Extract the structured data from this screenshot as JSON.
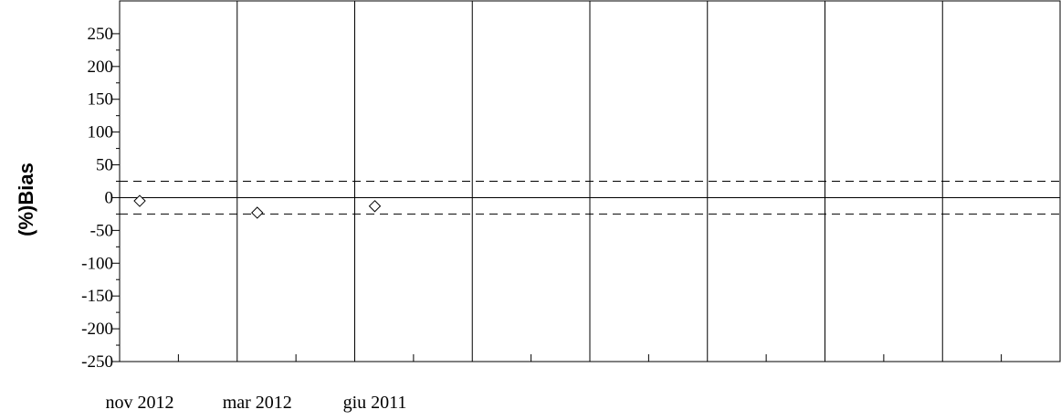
{
  "chart_data": {
    "type": "scatter",
    "ylabel": "(%)Bias",
    "ylim": [
      -250,
      300
    ],
    "yticks": [
      250,
      200,
      150,
      100,
      50,
      0,
      -50,
      -100,
      -150,
      -200,
      -250
    ],
    "categories": [
      "nov 2012",
      "mar 2012",
      "giu 2011",
      "",
      "",
      "",
      "",
      ""
    ],
    "series": [
      {
        "values": [
          -5,
          -23,
          -13
        ],
        "marker": "diamond-open"
      }
    ],
    "reference_lines": [
      {
        "y": 25,
        "style": "dashed"
      },
      {
        "y": 0,
        "style": "solid"
      },
      {
        "y": -25,
        "style": "dashed"
      }
    ],
    "grid": {
      "x": true,
      "y": false
    }
  }
}
